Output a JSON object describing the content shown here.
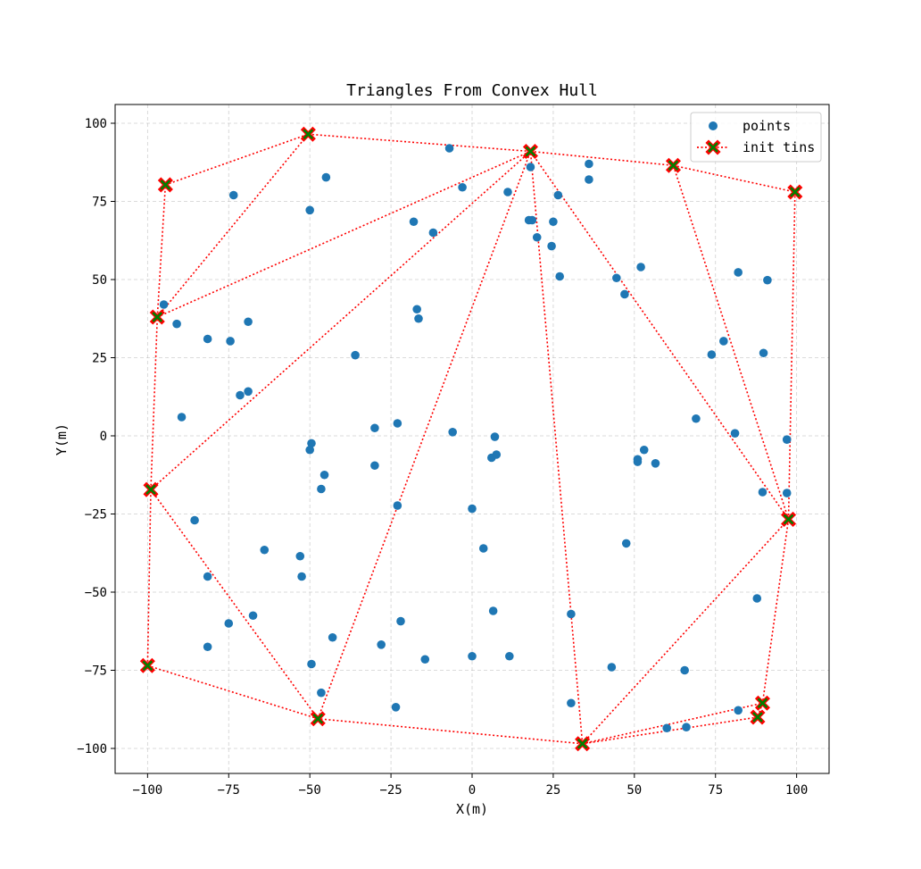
{
  "chart_data": {
    "type": "scatter",
    "title": "Triangles From Convex Hull",
    "xlabel": "X(m)",
    "ylabel": "Y(m)",
    "xlim": [
      -110,
      110
    ],
    "ylim": [
      -108,
      106
    ],
    "xticks": [
      -100,
      -75,
      -50,
      -25,
      0,
      25,
      50,
      75,
      100
    ],
    "yticks": [
      -100,
      -75,
      -50,
      -25,
      0,
      25,
      50,
      75,
      100
    ],
    "grid": true,
    "legend_position": "top-right",
    "colors": {
      "points": "#1f77b4",
      "tins_line": "#ff0000",
      "tins_marker": "#008000",
      "tins_marker_edge": "#ff0000"
    },
    "series": [
      {
        "name": "points",
        "style": "scatter",
        "points": [
          [
            -95,
            42
          ],
          [
            -73.5,
            77
          ],
          [
            -50,
            72.2
          ],
          [
            -45,
            82.7
          ],
          [
            -7,
            92
          ],
          [
            -3,
            79.5
          ],
          [
            -18,
            68.5
          ],
          [
            -12,
            65
          ],
          [
            11,
            78
          ],
          [
            18,
            86
          ],
          [
            17.5,
            69
          ],
          [
            18.5,
            69
          ],
          [
            20,
            63.5
          ],
          [
            25,
            68.5
          ],
          [
            24.5,
            60.7
          ],
          [
            26.5,
            77
          ],
          [
            36,
            87
          ],
          [
            36,
            82
          ],
          [
            27,
            51
          ],
          [
            44.5,
            50.5
          ],
          [
            52,
            54
          ],
          [
            47,
            45.3
          ],
          [
            82,
            52.3
          ],
          [
            91,
            49.8
          ],
          [
            -91,
            35.8
          ],
          [
            -81.5,
            31
          ],
          [
            -74.5,
            30.3
          ],
          [
            -69,
            36.5
          ],
          [
            -17,
            40.5
          ],
          [
            -16.5,
            37.5
          ],
          [
            -36,
            25.8
          ],
          [
            77.5,
            30.3
          ],
          [
            73.8,
            26
          ],
          [
            89.8,
            26.5
          ],
          [
            -71.5,
            13
          ],
          [
            -69,
            14.2
          ],
          [
            -89.5,
            6
          ],
          [
            69,
            5.5
          ],
          [
            81,
            0.8
          ],
          [
            97,
            -1.2
          ],
          [
            -30,
            2.5
          ],
          [
            -23,
            4
          ],
          [
            -6,
            1.2
          ],
          [
            7,
            -0.3
          ],
          [
            -49.5,
            -2.4
          ],
          [
            -50,
            -4.5
          ],
          [
            -45.5,
            -12.5
          ],
          [
            -30,
            -9.5
          ],
          [
            6,
            -7
          ],
          [
            7.5,
            -6
          ],
          [
            53,
            -4.5
          ],
          [
            51,
            -7.5
          ],
          [
            51,
            -8.3
          ],
          [
            56.5,
            -8.8
          ],
          [
            -46.5,
            -17
          ],
          [
            89.5,
            -18
          ],
          [
            97,
            -18.3
          ],
          [
            -23,
            -22.3
          ],
          [
            0,
            -23.3
          ],
          [
            -85.5,
            -27
          ],
          [
            -64,
            -36.5
          ],
          [
            -53,
            -38.5
          ],
          [
            3.5,
            -36
          ],
          [
            47.5,
            -34.4
          ],
          [
            -52.5,
            -45
          ],
          [
            -81.5,
            -45
          ],
          [
            -67.5,
            -57.5
          ],
          [
            -22,
            -59.3
          ],
          [
            6.5,
            -56
          ],
          [
            30.5,
            -57
          ],
          [
            87.8,
            -52
          ],
          [
            -75,
            -60
          ],
          [
            -43,
            -64.5
          ],
          [
            -81.5,
            -67.5
          ],
          [
            -28,
            -66.8
          ],
          [
            -49.5,
            -73
          ],
          [
            -14.5,
            -71.5
          ],
          [
            0,
            -70.5
          ],
          [
            11.5,
            -70.5
          ],
          [
            43,
            -74
          ],
          [
            65.5,
            -75
          ],
          [
            -46.5,
            -82.2
          ],
          [
            -23.5,
            -86.8
          ],
          [
            30.5,
            -85.5
          ],
          [
            82,
            -87.8
          ],
          [
            60,
            -93.5
          ],
          [
            66,
            -93.2
          ]
        ]
      },
      {
        "name": "init tins",
        "style": "line-with-markers",
        "hull": [
          [
            -50.5,
            96.5
          ],
          [
            18,
            91
          ],
          [
            62,
            86.5
          ],
          [
            99.5,
            78
          ],
          [
            97.5,
            -26.7
          ],
          [
            89.5,
            -85.5
          ],
          [
            88,
            -90
          ],
          [
            34,
            -98.5
          ],
          [
            -47.5,
            -90.5
          ],
          [
            -100,
            -73.5
          ],
          [
            -99,
            -17.2
          ],
          [
            -97,
            38
          ],
          [
            -94.5,
            80.3
          ]
        ],
        "interior_edges": [
          [
            [
              -97,
              38
            ],
            [
              -50.5,
              96.5
            ]
          ],
          [
            [
              -97,
              38
            ],
            [
              18,
              91
            ]
          ],
          [
            [
              -99,
              -17.2
            ],
            [
              18,
              91
            ]
          ],
          [
            [
              -47.5,
              -90.5
            ],
            [
              18,
              91
            ]
          ],
          [
            [
              34,
              -98.5
            ],
            [
              18,
              91
            ]
          ],
          [
            [
              97.5,
              -26.7
            ],
            [
              18,
              91
            ]
          ],
          [
            [
              97.5,
              -26.7
            ],
            [
              62,
              86.5
            ]
          ],
          [
            [
              34,
              -98.5
            ],
            [
              97.5,
              -26.7
            ]
          ],
          [
            [
              34,
              -98.5
            ],
            [
              89.5,
              -85.5
            ]
          ],
          [
            [
              -99,
              -17.2
            ],
            [
              -47.5,
              -90.5
            ]
          ]
        ]
      }
    ]
  }
}
